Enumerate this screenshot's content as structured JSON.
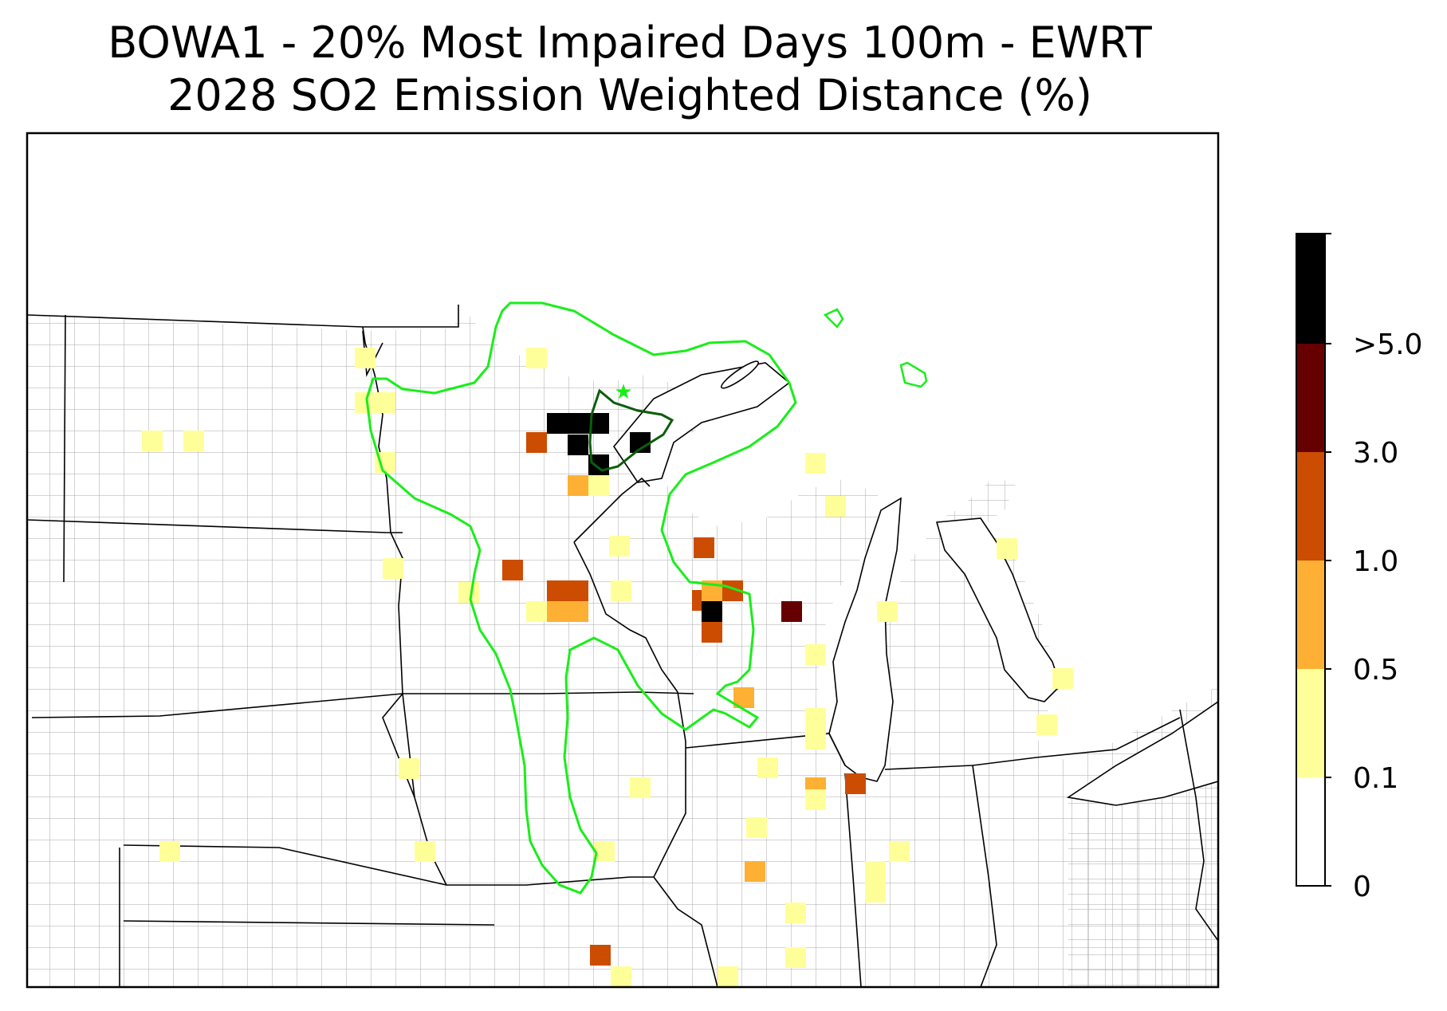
{
  "title": {
    "line1": "BOWA1 - 20% Most Impaired Days 100m - EWRT",
    "line2": "2028 SO2 Emission Weighted Distance (%)"
  },
  "colorbar": {
    "bins": [
      {
        "label": "0",
        "color": "#ffffff"
      },
      {
        "label": "0.1",
        "color": "#ffff99"
      },
      {
        "label": "0.5",
        "color": "#fdb033"
      },
      {
        "label": "1.0",
        "color": "#cc4c02"
      },
      {
        "label": "3.0",
        "color": "#660000"
      },
      {
        "label": ">5.0",
        "color": "#000000"
      }
    ]
  },
  "map": {
    "class_I_area_marker": "star-icon",
    "contour_colors": {
      "outer": "#19ee19",
      "inner": "#0b5e0b"
    },
    "border_colors": {
      "state": "#000000",
      "county": "#a0a0a0"
    }
  }
}
